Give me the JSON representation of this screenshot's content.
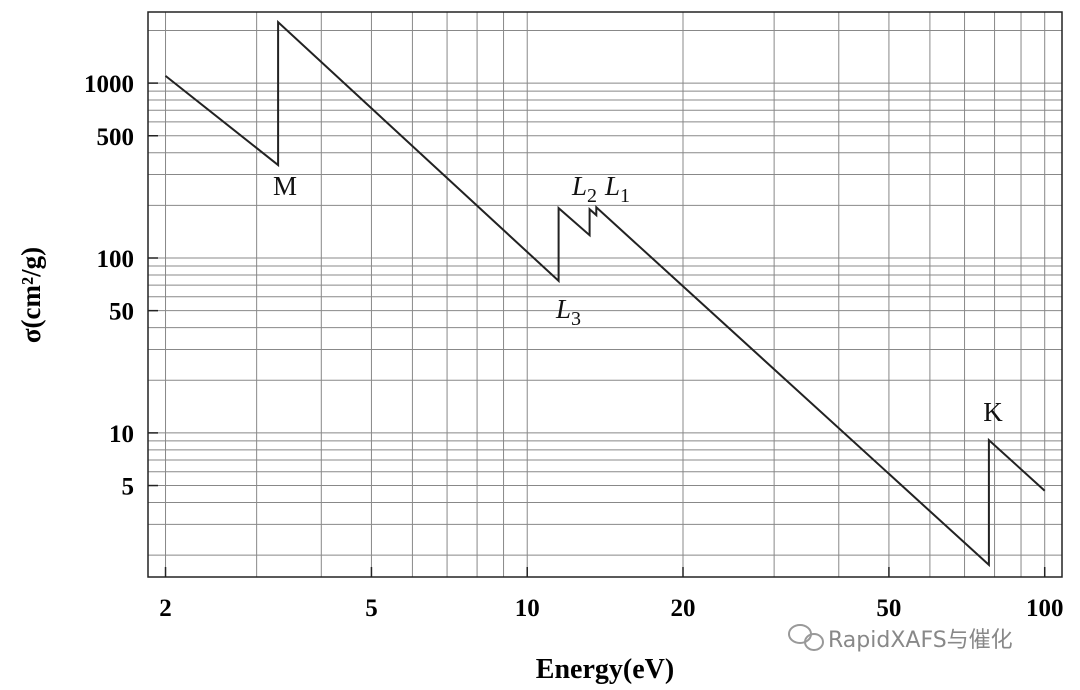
{
  "chart_data": {
    "type": "line",
    "xlabel": "Energy(eV)",
    "ylabel": "σ(cm²/g)",
    "log_x": true,
    "log_y": true,
    "grid": true,
    "xlim": [
      1.85,
      108
    ],
    "ylim": [
      1.5,
      2550
    ],
    "xticks": [
      2,
      5,
      10,
      20,
      50,
      100
    ],
    "yticks": [
      5,
      10,
      50,
      100,
      500,
      1000
    ],
    "x_minor_ticks": [
      3,
      4,
      6,
      7,
      8,
      9,
      30,
      40,
      60,
      70,
      80,
      90
    ],
    "y_minor_ticks": [
      2,
      3,
      4,
      6,
      7,
      8,
      9,
      20,
      30,
      40,
      60,
      70,
      80,
      90,
      200,
      300,
      400,
      600,
      700,
      800,
      900,
      2000
    ],
    "series": [
      {
        "color": "#222222",
        "x": [
          2,
          3.3,
          3.3,
          11.5,
          11.5,
          13.2,
          13.2,
          13.6,
          13.6,
          78,
          78,
          100
        ],
        "values": [
          1100,
          340,
          2230,
          74,
          193,
          135,
          190,
          176,
          195,
          1.76,
          9.1,
          4.67
        ]
      }
    ],
    "annotations": [
      {
        "text": "M"
      },
      {
        "text": "L",
        "sub": "3"
      },
      {
        "text": "L",
        "sub": "2"
      },
      {
        "text": "L",
        "sub": "1"
      },
      {
        "text": "K"
      }
    ],
    "watermark": "RapidXAFS与催化"
  }
}
